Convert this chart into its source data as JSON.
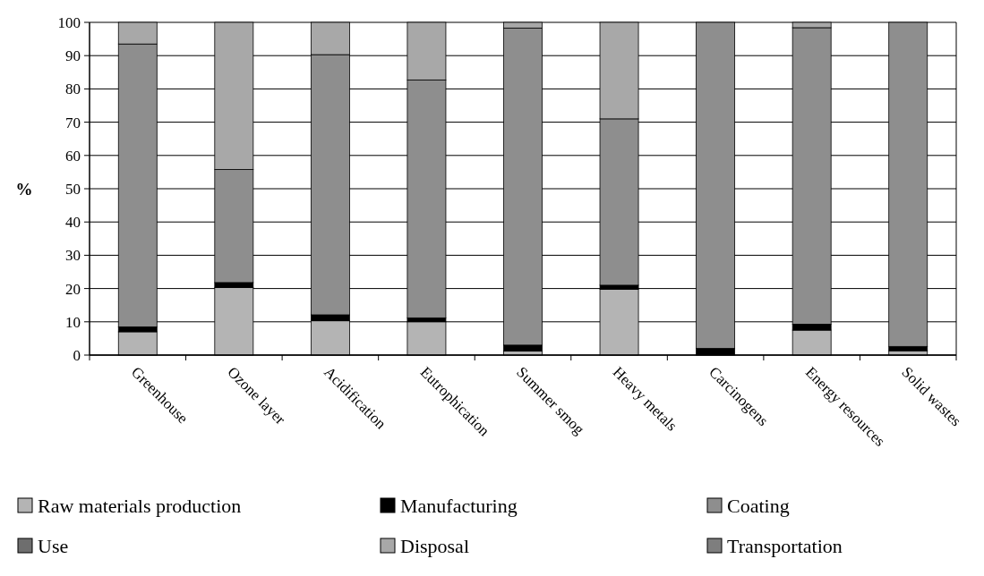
{
  "chart_data": {
    "type": "bar",
    "stacked": true,
    "ylabel": "%",
    "categories": [
      "Greenhouse",
      "Ozone layer",
      "Acidification",
      "Eutrophication",
      "Summer smog",
      "Heavy metals",
      "Carcinogens",
      "Energy resources",
      "Solid wastes"
    ],
    "series": [
      {
        "name": "Raw materials production",
        "color": "#b4b4b4",
        "values": [
          7,
          20.3,
          10.3,
          10,
          1.2,
          19.8,
          0,
          7.5,
          1.3
        ]
      },
      {
        "name": "Manufacturing",
        "color": "#000000",
        "values": [
          1.5,
          1.5,
          1.8,
          1.2,
          1.8,
          1.2,
          2,
          1.8,
          1.3
        ]
      },
      {
        "name": "Coating",
        "color": "#8e8e8e",
        "values": [
          85,
          34,
          78.2,
          71.5,
          95.3,
          50,
          98,
          89.1,
          97.4
        ]
      },
      {
        "name": "Use",
        "color": "#6e6e6e",
        "values": [
          0,
          0,
          0,
          0,
          0,
          0,
          0,
          0,
          0
        ]
      },
      {
        "name": "Disposal",
        "color": "#a8a8a8",
        "values": [
          6.5,
          44.2,
          9.7,
          17.3,
          1.7,
          29,
          0,
          1.6,
          0
        ]
      },
      {
        "name": "Transportation",
        "color": "#7e7e7e",
        "values": [
          0,
          0,
          0,
          0,
          0,
          0,
          0,
          0,
          0
        ]
      }
    ],
    "ylim": [
      0,
      100
    ],
    "yticks": [
      0,
      10,
      20,
      30,
      40,
      50,
      60,
      70,
      80,
      90,
      100
    ],
    "grid": "y",
    "legend": "bottom"
  }
}
